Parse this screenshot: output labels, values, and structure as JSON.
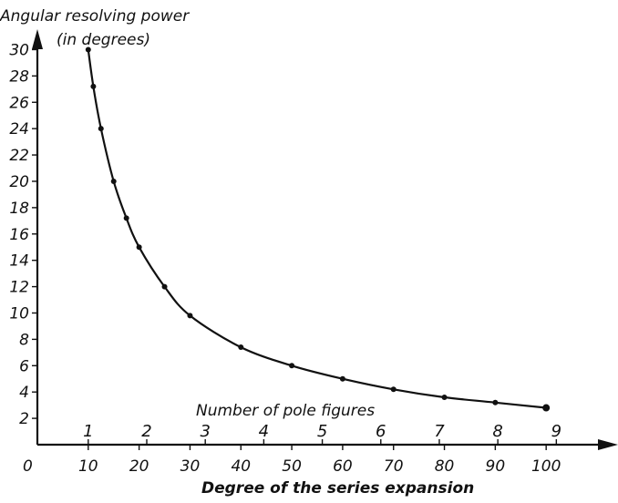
{
  "chart_data": {
    "type": "line",
    "ylabel_line1": "Angular resolving power",
    "ylabel_line2": "(in degrees)",
    "xlabel": "Degree of the series expansion",
    "secondary_axis_label": "Number of pole figures",
    "origin_label": "0",
    "xlim": [
      0,
      110
    ],
    "ylim": [
      0,
      31
    ],
    "x_ticks": [
      {
        "value": 10,
        "label": "10"
      },
      {
        "value": 20,
        "label": "20"
      },
      {
        "value": 30,
        "label": "30"
      },
      {
        "value": 40,
        "label": "40"
      },
      {
        "value": 50,
        "label": "50"
      },
      {
        "value": 60,
        "label": "60"
      },
      {
        "value": 70,
        "label": "70"
      },
      {
        "value": 80,
        "label": "80"
      },
      {
        "value": 90,
        "label": "90"
      },
      {
        "value": 100,
        "label": "100"
      }
    ],
    "y_ticks": [
      {
        "value": 2,
        "label": "2"
      },
      {
        "value": 4,
        "label": "4"
      },
      {
        "value": 6,
        "label": "6"
      },
      {
        "value": 8,
        "label": "8"
      },
      {
        "value": 10,
        "label": "10"
      },
      {
        "value": 12,
        "label": "12"
      },
      {
        "value": 14,
        "label": "14"
      },
      {
        "value": 16,
        "label": "16"
      },
      {
        "value": 18,
        "label": "18"
      },
      {
        "value": 20,
        "label": "20"
      },
      {
        "value": 22,
        "label": "22"
      },
      {
        "value": 24,
        "label": "24"
      },
      {
        "value": 26,
        "label": "26"
      },
      {
        "value": 28,
        "label": "28"
      },
      {
        "value": 30,
        "label": "30"
      }
    ],
    "pole_figure_ticks": [
      {
        "value": 10,
        "label": "1"
      },
      {
        "value": 21.5,
        "label": "2"
      },
      {
        "value": 33,
        "label": "3"
      },
      {
        "value": 44.5,
        "label": "4"
      },
      {
        "value": 56,
        "label": "5"
      },
      {
        "value": 67.5,
        "label": "6"
      },
      {
        "value": 79,
        "label": "7"
      },
      {
        "value": 90.5,
        "label": "8"
      },
      {
        "value": 102,
        "label": "9"
      }
    ],
    "series": [
      {
        "x": [
          10,
          11,
          12.5,
          15,
          17.5,
          20,
          25,
          30,
          40,
          50,
          60,
          70,
          80,
          90,
          100
        ],
        "y": [
          30,
          27.2,
          24,
          20,
          17.2,
          15,
          12,
          9.8,
          7.4,
          6,
          5,
          4.2,
          3.6,
          3.2,
          2.8
        ]
      }
    ]
  }
}
